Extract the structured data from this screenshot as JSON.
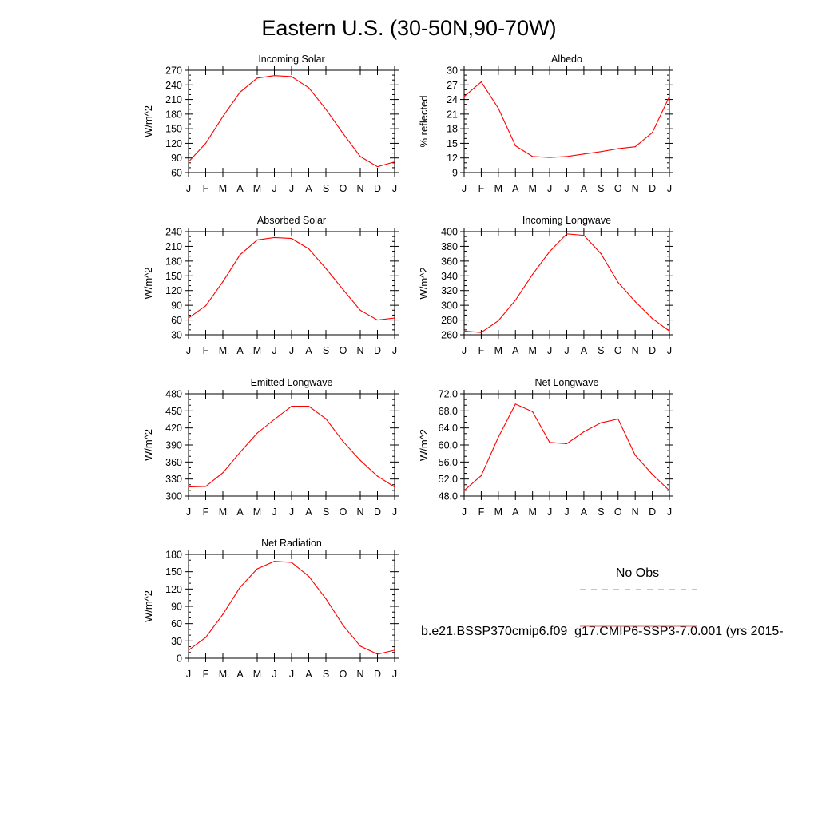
{
  "title": "Eastern U.S. (30-50N,90-70W)",
  "months": [
    "J",
    "F",
    "M",
    "A",
    "M",
    "J",
    "J",
    "A",
    "S",
    "O",
    "N",
    "D",
    "J"
  ],
  "legend": {
    "obs_label": "No Obs",
    "obs_color": "#7f7fe6",
    "model_label": "b.e21.BSSP370cmip6.f09_g17.CMIP6-SSP3-7.0.001 (yrs 2015-",
    "model_color": "#e06060"
  },
  "line_color": "#ff0000",
  "chart_data": [
    {
      "type": "line",
      "title": "Incoming Solar",
      "ylabel": "W/m^2",
      "ylim": [
        60,
        270
      ],
      "yticks": [
        60,
        90,
        120,
        150,
        180,
        210,
        240,
        270
      ],
      "ytick_labels": [
        "60",
        "90",
        "120",
        "150",
        "180",
        "210",
        "240",
        "270"
      ],
      "values": [
        82,
        120,
        175,
        225,
        254,
        259,
        257,
        234,
        190,
        140,
        93,
        72,
        82
      ]
    },
    {
      "type": "line",
      "title": "Albedo",
      "ylabel": "% reflected",
      "ylim": [
        9,
        30
      ],
      "yticks": [
        9,
        12,
        15,
        18,
        21,
        24,
        27,
        30
      ],
      "ytick_labels": [
        "9",
        "12",
        "15",
        "18",
        "21",
        "24",
        "27",
        "30"
      ],
      "values": [
        24.6,
        27.6,
        22.2,
        14.5,
        12.3,
        12.1,
        12.3,
        12.8,
        13.3,
        13.9,
        14.3,
        17.2,
        24.6
      ]
    },
    {
      "type": "line",
      "title": "Absorbed Solar",
      "ylabel": "W/m^2",
      "ylim": [
        30,
        240
      ],
      "yticks": [
        30,
        60,
        90,
        120,
        150,
        180,
        210,
        240
      ],
      "ytick_labels": [
        "30",
        "60",
        "90",
        "120",
        "150",
        "180",
        "210",
        "240"
      ],
      "values": [
        64,
        89,
        138,
        193,
        223,
        228,
        226,
        205,
        165,
        122,
        80,
        60,
        64
      ]
    },
    {
      "type": "line",
      "title": "Incoming Longwave",
      "ylabel": "W/m^2",
      "ylim": [
        260,
        400
      ],
      "yticks": [
        260,
        280,
        300,
        320,
        340,
        360,
        380,
        400
      ],
      "ytick_labels": [
        "260",
        "280",
        "300",
        "320",
        "340",
        "360",
        "380",
        "400"
      ],
      "values": [
        265,
        263,
        279,
        307,
        342,
        373,
        397,
        395,
        370,
        331,
        305,
        282,
        265
      ]
    },
    {
      "type": "line",
      "title": "Emitted Longwave",
      "ylabel": "W/m^2",
      "ylim": [
        300,
        480
      ],
      "yticks": [
        300,
        330,
        360,
        390,
        420,
        450,
        480
      ],
      "ytick_labels": [
        "300",
        "330",
        "360",
        "390",
        "420",
        "450",
        "480"
      ],
      "values": [
        316,
        317,
        341,
        377,
        411,
        435,
        458,
        458,
        436,
        396,
        363,
        335,
        316
      ]
    },
    {
      "type": "line",
      "title": "Net Longwave",
      "ylabel": "W/m^2",
      "ylim": [
        48,
        72
      ],
      "yticks": [
        48,
        52,
        56,
        60,
        64,
        68,
        72
      ],
      "ytick_labels": [
        "48.0",
        "52.0",
        "56.0",
        "60.0",
        "64.0",
        "68.0",
        "72.0"
      ],
      "values": [
        49.3,
        52.8,
        61.8,
        69.6,
        67.8,
        60.6,
        60.3,
        63.1,
        65.2,
        66.1,
        57.6,
        53.1,
        49.3
      ]
    },
    {
      "type": "line",
      "title": "Net Radiation",
      "ylabel": "W/m^2",
      "ylim": [
        0,
        180
      ],
      "yticks": [
        0,
        30,
        60,
        90,
        120,
        150,
        180
      ],
      "ytick_labels": [
        "0",
        "30",
        "60",
        "90",
        "120",
        "150",
        "180"
      ],
      "values": [
        14,
        36,
        76,
        123,
        155,
        168,
        166,
        142,
        103,
        57,
        21,
        7,
        14
      ]
    }
  ]
}
